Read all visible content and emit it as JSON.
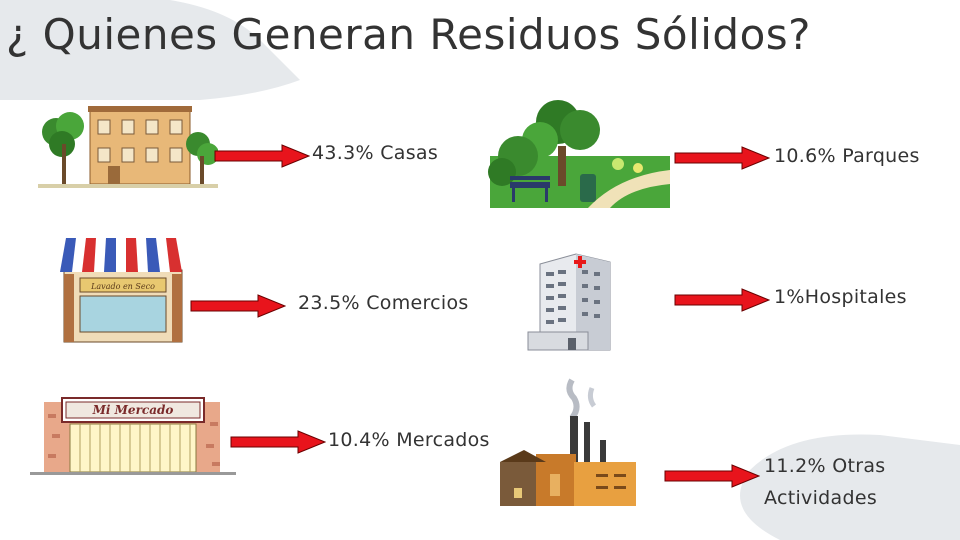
{
  "slide": {
    "title": "¿ Quienes Generan Residuos Sólidos?"
  },
  "items": [
    {
      "label": "43.3% Casas",
      "percent": 43.3
    },
    {
      "label": "23.5% Comercios",
      "percent": 23.5
    },
    {
      "label": "10.4% Mercados",
      "percent": 10.4
    },
    {
      "label": "10.6% Parques",
      "percent": 10.6
    },
    {
      "label": "1%Hospitales",
      "percent": 1
    },
    {
      "label_line1": "11.2% Otras",
      "label_line2": "Actividades",
      "percent": 11.2
    }
  ],
  "signs": {
    "store": "Lavado en Seco",
    "market": "Mi Mercado"
  },
  "colors": {
    "arrow": "#e8141c",
    "text": "#333333",
    "bg_shape": "#e3e7eb"
  }
}
